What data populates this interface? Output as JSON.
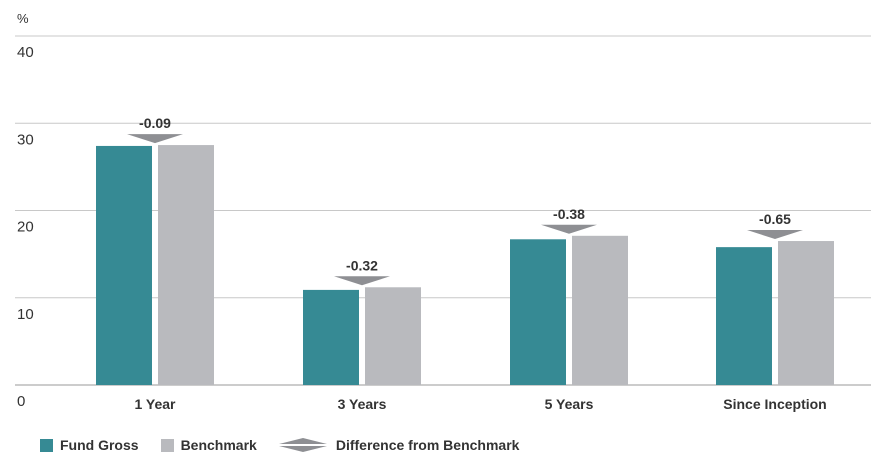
{
  "chart_data": {
    "type": "bar",
    "unit_label": "%",
    "categories": [
      "1 Year",
      "3 Years",
      "5 Years",
      "Since Inception"
    ],
    "series": [
      {
        "name": "Fund Gross",
        "values": [
          27.4,
          10.9,
          16.7,
          15.8
        ],
        "color": "#368a94"
      },
      {
        "name": "Benchmark",
        "values": [
          27.5,
          11.2,
          17.1,
          16.5
        ],
        "color": "#b9babe"
      }
    ],
    "differences": [
      "-0.09",
      "-0.32",
      "-0.38",
      "-0.65"
    ],
    "difference_label": "Difference from Benchmark",
    "difference_color": "#8e8f93",
    "ylim": [
      0,
      40
    ],
    "yticks": [
      "0",
      "10",
      "20",
      "30",
      "40"
    ],
    "grid": true,
    "legend_position": "bottom-left"
  }
}
